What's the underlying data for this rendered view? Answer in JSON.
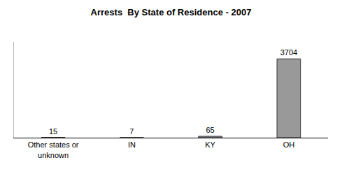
{
  "chart_data": {
    "type": "bar",
    "title": "Arrests  By State of Residence - 2007",
    "categories": [
      "Other states or unknown",
      "IN",
      "KY",
      "OH"
    ],
    "values": [
      15,
      7,
      65,
      3704
    ],
    "color": "#999999",
    "ylim": [
      0,
      4500
    ],
    "grid": false,
    "data_labels": true,
    "tick_labels": "x"
  }
}
